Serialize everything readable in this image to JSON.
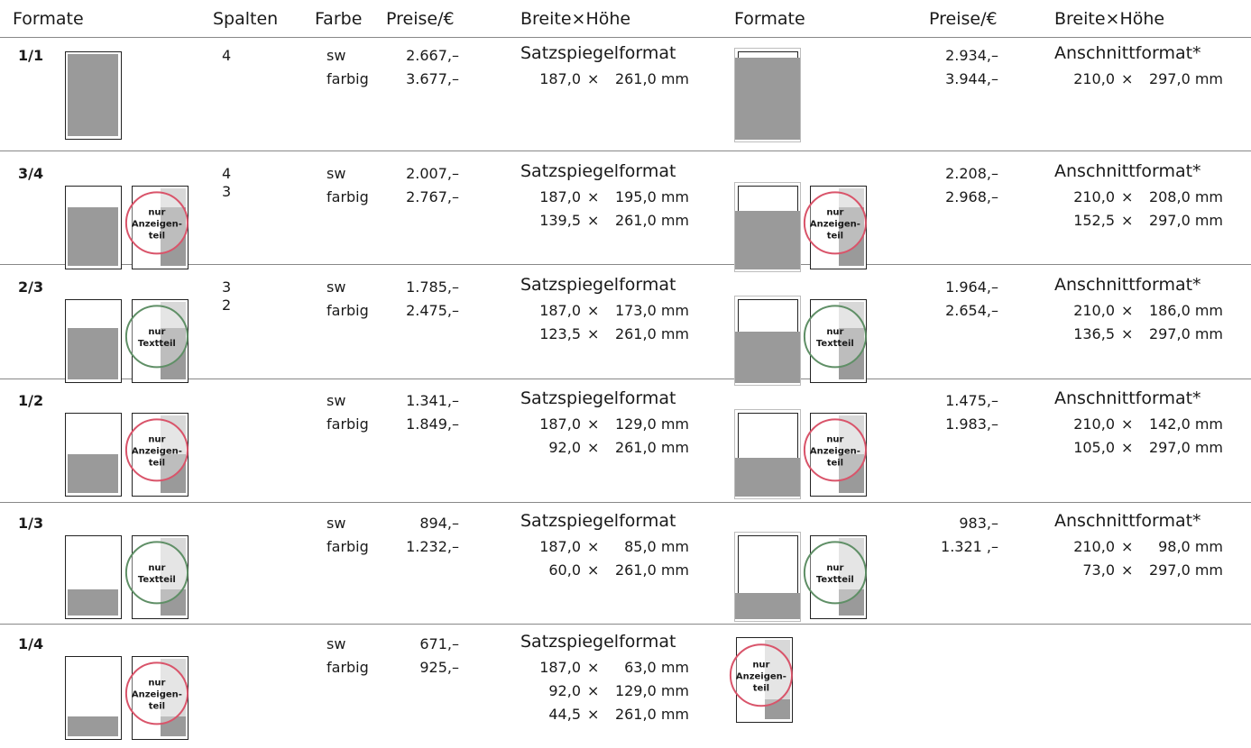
{
  "headers": {
    "formate_left": "Formate",
    "spalten": "Spalten",
    "farbe": "Farbe",
    "preise_left": "Preise/€",
    "bh_left": "Breite×Höhe",
    "formate_right": "Formate",
    "preise_right": "Preise/€",
    "bh_right": "Breite×Höhe"
  },
  "labels": {
    "sw": "sw",
    "farbig": "farbig",
    "satzspiegel": "Satzspiegelformat",
    "anschnitt": "Anschnittformat*"
  },
  "badges": {
    "anzeigen": [
      "nur",
      "Anzeigen-",
      "teil"
    ],
    "text": [
      "nur",
      "Textteil"
    ]
  },
  "colors": {
    "gray_fill": "#9a9a9a",
    "light_fill": "#d8d8d8",
    "badge_red": "#d9546a",
    "badge_green": "#5f8f66"
  },
  "rows": [
    {
      "format": "1/1",
      "spalten": [
        "4"
      ],
      "price_sw": "2.667,–",
      "price_farbig": "3.677,–",
      "satz_dims": [
        "187,0 × 261,0 mm"
      ],
      "price_sw_r": "2.934,–",
      "price_farbig_r": "3.944,–",
      "an_dims": [
        "210,0 × 297,0 mm"
      ],
      "fill_fraction": 1.0,
      "badge": ""
    },
    {
      "format": "3/4",
      "spalten": [
        "4",
        "3"
      ],
      "price_sw": "2.007,–",
      "price_farbig": "2.767,–",
      "satz_dims": [
        "187,0 × 195,0 mm",
        "139,5 × 261,0 mm"
      ],
      "price_sw_r": "2.208,–",
      "price_farbig_r": "2.968,–",
      "an_dims": [
        "210,0 × 208,0 mm",
        "152,5 × 297,0 mm"
      ],
      "fill_fraction": 0.75,
      "badge": "anzeigen"
    },
    {
      "format": "2/3",
      "spalten": [
        "3",
        "2"
      ],
      "price_sw": "1.785,–",
      "price_farbig": "2.475,–",
      "satz_dims": [
        "187,0 × 173,0 mm",
        "123,5 × 261,0 mm"
      ],
      "price_sw_r": "1.964,–",
      "price_farbig_r": "2.654,–",
      "an_dims": [
        "210,0 × 186,0 mm",
        "136,5 × 297,0 mm"
      ],
      "fill_fraction": 0.6667,
      "badge": "text"
    },
    {
      "format": "1/2",
      "spalten": [],
      "price_sw": "1.341,–",
      "price_farbig": "1.849,–",
      "satz_dims": [
        "187,0 × 129,0 mm",
        "92,0 × 261,0 mm"
      ],
      "price_sw_r": "1.475,–",
      "price_farbig_r": "1.983,–",
      "an_dims": [
        "210,0 × 142,0 mm",
        "105,0 × 297,0 mm"
      ],
      "fill_fraction": 0.5,
      "badge": "anzeigen"
    },
    {
      "format": "1/3",
      "spalten": [],
      "price_sw": "894,–",
      "price_farbig": "1.232,–",
      "satz_dims": [
        "187,0 × 85,0 mm",
        "60,0 × 261,0 mm"
      ],
      "price_sw_r": "983,–",
      "price_farbig_r": "1.321 ,–",
      "an_dims": [
        "210,0 × 98,0 mm",
        "73,0 × 297,0 mm"
      ],
      "fill_fraction": 0.3333,
      "badge": "text"
    },
    {
      "format": "1/4",
      "spalten": [],
      "price_sw": "671,–",
      "price_farbig": "925,–",
      "satz_dims": [
        "187,0 × 63,0 mm",
        "92,0 × 129,0 mm",
        "44,5 × 261,0 mm"
      ],
      "price_sw_r": "",
      "price_farbig_r": "",
      "an_dims": [],
      "fill_fraction": 0.25,
      "badge": "anzeigen"
    }
  ]
}
